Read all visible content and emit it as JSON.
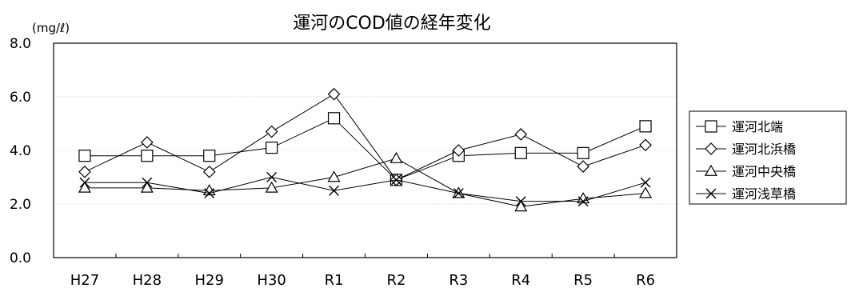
{
  "chart_data": {
    "type": "line",
    "title": "運河のCOD値の経年変化",
    "unit_label": "(mg/ℓ)",
    "categories": [
      "H27",
      "H28",
      "H29",
      "H30",
      "R1",
      "R2",
      "R3",
      "R4",
      "R5",
      "R6"
    ],
    "yticks": [
      "0.0",
      "2.0",
      "4.0",
      "6.0",
      "8.0"
    ],
    "ylim": [
      0,
      8
    ],
    "grid": true,
    "legend_position": "right",
    "series": [
      {
        "name": "運河北端",
        "marker": "square",
        "values": [
          3.8,
          3.8,
          3.8,
          4.1,
          5.2,
          2.9,
          3.8,
          3.9,
          3.9,
          4.9
        ]
      },
      {
        "name": "運河北浜橋",
        "marker": "diamond",
        "values": [
          3.2,
          4.3,
          3.2,
          4.7,
          6.1,
          2.9,
          4.0,
          4.6,
          3.4,
          4.2
        ]
      },
      {
        "name": "運河中央橋",
        "marker": "triangle",
        "values": [
          2.6,
          2.6,
          2.5,
          2.6,
          3.0,
          3.7,
          2.4,
          1.9,
          2.2,
          2.4
        ]
      },
      {
        "name": "運河浅草橋",
        "marker": "x",
        "values": [
          2.8,
          2.8,
          2.4,
          3.0,
          2.5,
          2.9,
          2.4,
          2.1,
          2.1,
          2.8
        ]
      }
    ]
  }
}
